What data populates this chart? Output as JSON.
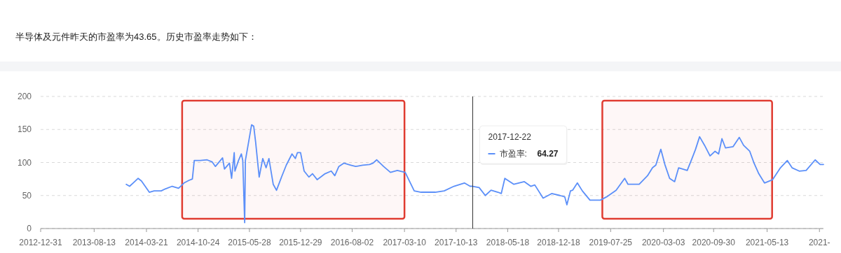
{
  "chart_data": {
    "type": "line",
    "title": "半导体及元件昨天的市盈率为43.65。历史市盈率走势如下：",
    "xlim": [
      "2012-12-31",
      "2022-01-05"
    ],
    "xticks": [
      {
        "value": "2012-12-31",
        "label": "2012-12-31"
      },
      {
        "value": "2013-08-13",
        "label": "2013-08-13"
      },
      {
        "value": "2014-03-21",
        "label": "2014-03-21"
      },
      {
        "value": "2014-10-24",
        "label": "2014-10-24"
      },
      {
        "value": "2015-05-28",
        "label": "2015-05-28"
      },
      {
        "value": "2015-12-29",
        "label": "2015-12-29"
      },
      {
        "value": "2016-08-02",
        "label": "2016-08-02"
      },
      {
        "value": "2017-03-10",
        "label": "2017-03-10"
      },
      {
        "value": "2017-10-13",
        "label": "2017-10-13"
      },
      {
        "value": "2018-05-18",
        "label": "2018-05-18"
      },
      {
        "value": "2018-12-18",
        "label": "2018-12-18"
      },
      {
        "value": "2019-07-25",
        "label": "2019-07-25"
      },
      {
        "value": "2020-03-03",
        "label": "2020-03-03"
      },
      {
        "value": "2020-09-30",
        "label": "2020-09-30"
      },
      {
        "value": "2021-05-13",
        "label": "2021-05-13"
      },
      {
        "value": "2021-12-19",
        "label": "2021-"
      }
    ],
    "ylim": [
      0,
      200
    ],
    "yticks": [
      0,
      50,
      100,
      150,
      200
    ],
    "grid": "y",
    "legend": "top",
    "marker": "none",
    "line_style": "solid",
    "ref_lines": [
      {
        "axis": "x",
        "value": "2017-12-22",
        "color": "#333333"
      }
    ],
    "bands": [
      {
        "axis": "x",
        "from": "2014-08-18",
        "to": "2017-03-10",
        "color": "#e03c31"
      },
      {
        "axis": "x",
        "from": "2019-06-20",
        "to": "2021-06-03",
        "color": "#e03c31"
      }
    ],
    "annotations": [
      "2017-12-22",
      "64.27"
    ],
    "series": [
      {
        "name": "市盈率:",
        "color": "#5b8ff9",
        "x": [
          "2013-12-26",
          "2014-01-09",
          "2014-01-24",
          "2014-02-14",
          "2014-02-28",
          "2014-04-02",
          "2014-04-22",
          "2014-05-22",
          "2014-06-08",
          "2014-07-07",
          "2014-08-03",
          "2014-08-26",
          "2014-09-16",
          "2014-09-30",
          "2014-10-08",
          "2014-11-02",
          "2014-12-01",
          "2014-12-22",
          "2015-01-05",
          "2015-02-04",
          "2015-02-12",
          "2015-03-05",
          "2015-03-14",
          "2015-03-25",
          "2015-03-28",
          "2015-04-12",
          "2015-04-24",
          "2015-04-30",
          "2015-05-08",
          "2015-05-11",
          "2015-05-26",
          "2015-06-06",
          "2015-06-15",
          "2015-06-23",
          "2015-07-08",
          "2015-07-23",
          "2015-08-06",
          "2015-08-18",
          "2015-09-05",
          "2015-09-19",
          "2015-10-10",
          "2015-10-30",
          "2015-11-23",
          "2015-12-07",
          "2015-12-16",
          "2015-12-29",
          "2016-01-13",
          "2016-02-02",
          "2016-02-17",
          "2016-03-08",
          "2016-04-10",
          "2016-05-06",
          "2016-05-21",
          "2016-06-07",
          "2016-06-28",
          "2016-07-27",
          "2016-08-17",
          "2016-09-15",
          "2016-10-14",
          "2016-10-29",
          "2016-11-13",
          "2016-12-12",
          "2017-01-10",
          "2017-02-08",
          "2017-03-13",
          "2017-04-20",
          "2017-05-19",
          "2017-06-18",
          "2017-07-17",
          "2017-08-24",
          "2017-10-04",
          "2017-11-17",
          "2017-12-11",
          "2017-12-22",
          "2018-01-18",
          "2018-02-13",
          "2018-03-09",
          "2018-04-07",
          "2018-04-21",
          "2018-05-06",
          "2018-06-13",
          "2018-07-27",
          "2018-08-23",
          "2018-09-09",
          "2018-10-14",
          "2018-11-19",
          "2018-12-24",
          "2019-01-13",
          "2019-01-22",
          "2019-02-06",
          "2019-02-15",
          "2019-03-07",
          "2019-03-28",
          "2019-04-29",
          "2019-06-12",
          "2019-07-08",
          "2019-08-17",
          "2019-09-22",
          "2019-10-06",
          "2019-11-22",
          "2019-12-27",
          "2020-01-17",
          "2020-01-31",
          "2020-02-21",
          "2020-03-09",
          "2020-03-29",
          "2020-04-19",
          "2020-05-06",
          "2020-06-11",
          "2020-07-01",
          "2020-07-16",
          "2020-08-02",
          "2020-08-23",
          "2020-09-15",
          "2020-10-06",
          "2020-10-21",
          "2020-11-04",
          "2020-11-19",
          "2020-12-21",
          "2021-01-16",
          "2021-02-03",
          "2021-03-01",
          "2021-03-19",
          "2021-04-08",
          "2021-05-02",
          "2021-06-05",
          "2021-07-08",
          "2021-08-06",
          "2021-08-26",
          "2021-09-25",
          "2021-10-24",
          "2021-12-01",
          "2021-12-22",
          "2022-01-05"
        ],
        "values": [
          67,
          64,
          69,
          76,
          72,
          55,
          57,
          57,
          60,
          64,
          61,
          69,
          73,
          75,
          103,
          103,
          104,
          101,
          94,
          107,
          90,
          99,
          76,
          115,
          87,
          103,
          113,
          103,
          9,
          103,
          134,
          157,
          155,
          131,
          78,
          106,
          92,
          106,
          67,
          58,
          78,
          96,
          113,
          106,
          115,
          115,
          87,
          78,
          83,
          74,
          83,
          87,
          80,
          94,
          99,
          96,
          94,
          96,
          97,
          99,
          104,
          94,
          85,
          88,
          85,
          57,
          55,
          55,
          55,
          57,
          64,
          69,
          64,
          64,
          62,
          50,
          58,
          55,
          53,
          76,
          67,
          71,
          64,
          66,
          46,
          53,
          50,
          48,
          36,
          57,
          58,
          69,
          57,
          43,
          43,
          48,
          58,
          76,
          67,
          67,
          80,
          92,
          96,
          120,
          97,
          76,
          71,
          92,
          88,
          106,
          120,
          139,
          126,
          110,
          117,
          113,
          136,
          122,
          124,
          138,
          126,
          117,
          99,
          83,
          69,
          74,
          92,
          103,
          92,
          87,
          88,
          104,
          97,
          97
        ]
      }
    ]
  }
}
